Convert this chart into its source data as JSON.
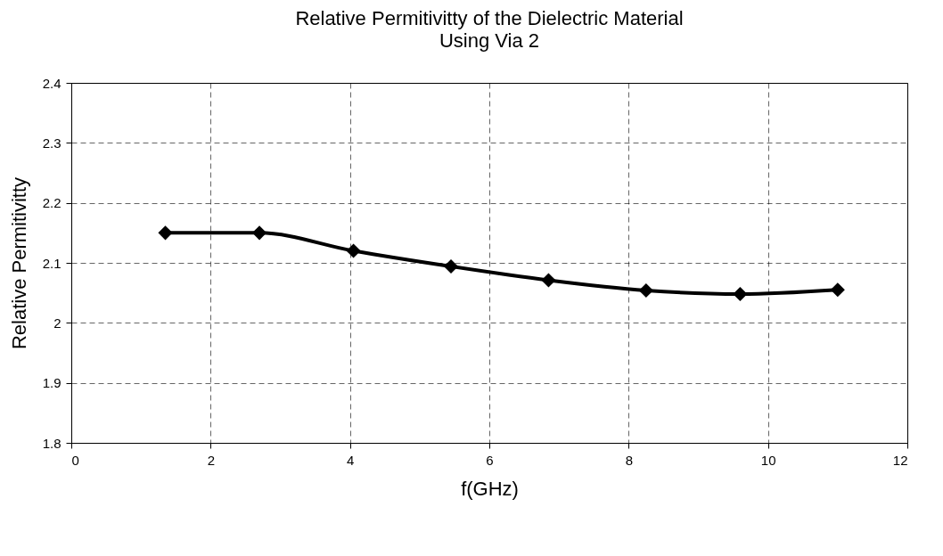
{
  "chart_data": {
    "type": "line",
    "title": "Relative Permitivitty of the Dielectric Material",
    "subtitle": "Using Via 2",
    "xlabel": "f(GHz)",
    "ylabel": "Relative Permitivitty",
    "x": [
      1.35,
      2.7,
      4.05,
      5.45,
      6.85,
      8.25,
      9.6,
      11
    ],
    "series": [
      {
        "color": "#000000",
        "values": [
          2.15,
          2.15,
          2.12,
          2.094,
          2.071,
          2.054,
          2.048,
          2.055
        ]
      }
    ],
    "xlim": [
      0,
      12
    ],
    "xticks": [
      0,
      2,
      4,
      6,
      8,
      10,
      12
    ],
    "ylim": [
      1.8,
      2.4
    ],
    "yticks": [
      1.8,
      1.9,
      2,
      2.1,
      2.2,
      2.3,
      2.4
    ],
    "grid": true,
    "marker": "diamond",
    "line_style": "solid"
  }
}
